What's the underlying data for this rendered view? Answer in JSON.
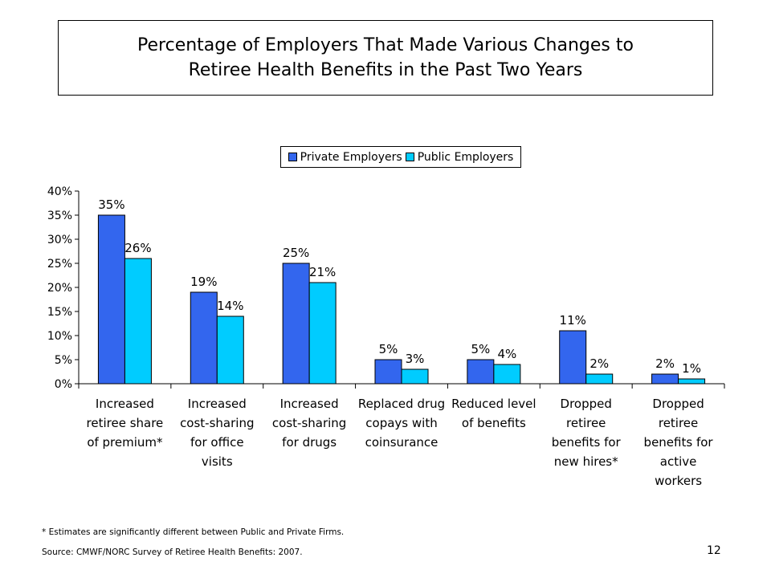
{
  "title_lines": [
    "Percentage of Employers That Made Various Changes to",
    "Retiree Health Benefits in the Past Two Years"
  ],
  "legend": {
    "placement": "top-center"
  },
  "colors": {
    "private": "#3366ee",
    "public": "#00ccff"
  },
  "chart_data": {
    "type": "bar",
    "categories": [
      [
        "Increased",
        "retiree share",
        "of premium*"
      ],
      [
        "Increased",
        "cost-sharing",
        "for office",
        "visits"
      ],
      [
        "Increased",
        "cost-sharing",
        "for drugs"
      ],
      [
        "Replaced drug",
        "copays with",
        "coinsurance"
      ],
      [
        "Reduced level",
        "of benefits"
      ],
      [
        "Dropped",
        "retiree",
        "benefits for",
        "new hires*"
      ],
      [
        "Dropped",
        "retiree",
        "benefits for",
        "active",
        "workers"
      ]
    ],
    "series": [
      {
        "name": "Private Employers",
        "values": [
          35,
          19,
          25,
          5,
          5,
          11,
          2
        ],
        "labels": [
          "35%",
          "19%",
          "25%",
          "5%",
          "5%",
          "11%",
          "2%"
        ]
      },
      {
        "name": "Public Employers",
        "values": [
          26,
          14,
          21,
          3,
          4,
          2,
          1
        ],
        "labels": [
          "26%",
          "14%",
          "21%",
          "3%",
          "4%",
          "2%",
          "1%"
        ]
      }
    ],
    "ylim": [
      0,
      40
    ],
    "yticks": [
      0,
      5,
      10,
      15,
      20,
      25,
      30,
      35,
      40
    ],
    "ytick_labels": [
      "0%",
      "5%",
      "10%",
      "15%",
      "20%",
      "25%",
      "30%",
      "35%",
      "40%"
    ],
    "grid": false
  },
  "footnote": "* Estimates are significantly different between Public and Private Firms.",
  "source": "Source: CMWF/NORC Survey of Retiree Health Benefits: 2007.",
  "page_number": "12"
}
